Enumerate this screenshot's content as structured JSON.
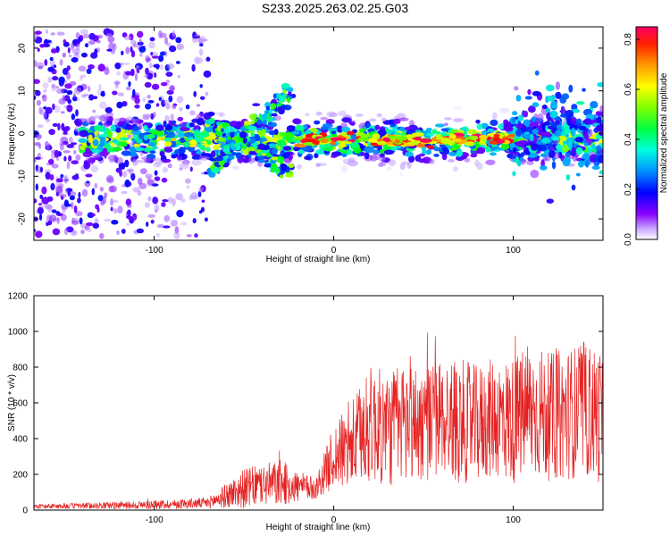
{
  "title": "S233.2025.263.02.25.G03",
  "colors": {
    "snr_line": "#e52222",
    "frame": "#000000"
  },
  "chart_data": [
    {
      "type": "heatmap",
      "xlabel": "Height of straight line (km)",
      "ylabel": "Frequency (Hz)",
      "xlim": [
        -167,
        150
      ],
      "ylim": [
        -25,
        25
      ],
      "xticks": [
        -100,
        0,
        100
      ],
      "xtick_labels": [
        "-100",
        "0",
        "100"
      ],
      "yticks": [
        -20,
        -10,
        0,
        10,
        20
      ],
      "ytick_labels": [
        "-20",
        "-10",
        "0",
        "10",
        "20"
      ],
      "colorbar": {
        "label": "Normalized spectral amplitude",
        "range": [
          0,
          0.85
        ],
        "ticks": [
          0,
          0.2,
          0.4,
          0.6,
          0.8
        ],
        "tick_labels": [
          "0.0",
          "0.2",
          "0.4",
          "0.6",
          "0.8"
        ],
        "colormap": [
          "#ffffff",
          "#b388ff",
          "#7a00ff",
          "#0000ff",
          "#00a0ff",
          "#00ffcc",
          "#00ff00",
          "#ccff00",
          "#ffff00",
          "#ff9900",
          "#ff0000",
          "#ff0066"
        ]
      },
      "features": [
        {
          "name": "noise-floor",
          "x_range": [
            -167,
            -70
          ],
          "freq_spread_hz": 24,
          "amplitude": 0.12
        },
        {
          "name": "main-band",
          "x_range": [
            -140,
            150
          ],
          "center_freq_hz": -1.5,
          "amplitude": 0.45
        },
        {
          "name": "peak-band",
          "x_range": [
            -20,
            100
          ],
          "center_freq_hz": -1.5,
          "amplitude": 0.75
        },
        {
          "name": "branch-upper",
          "x_start": -70,
          "x_end": -25,
          "f_start": 3,
          "f_end": -9,
          "amplitude": 0.35
        },
        {
          "name": "branch-lower",
          "x_start": -70,
          "x_end": -25,
          "f_start": -9,
          "f_end": 10,
          "amplitude": 0.35
        },
        {
          "name": "edge-spread",
          "x_range": [
            100,
            150
          ],
          "freq_spread_hz": 10,
          "amplitude": 0.2
        }
      ]
    },
    {
      "type": "line",
      "xlabel": "Height of straight line (km)",
      "ylabel": "SNR (10 * v/v)",
      "xlim": [
        -167,
        150
      ],
      "ylim": [
        0,
        1200
      ],
      "xticks": [
        -100,
        0,
        100
      ],
      "xtick_labels": [
        "-100",
        "0",
        "100"
      ],
      "yticks": [
        0,
        200,
        400,
        600,
        800,
        1000,
        1200
      ],
      "ytick_labels": [
        "0",
        "200",
        "400",
        "600",
        "800",
        "1000",
        "1200"
      ],
      "envelope_x": [
        -167,
        -100,
        -70,
        -60,
        -50,
        -40,
        -30,
        -20,
        -10,
        0,
        10,
        20,
        30,
        40,
        50,
        60,
        70,
        80,
        90,
        100,
        110,
        120,
        130,
        140,
        150
      ],
      "envelope_mean": [
        20,
        30,
        40,
        80,
        120,
        140,
        150,
        130,
        120,
        300,
        360,
        480,
        450,
        500,
        480,
        520,
        500,
        480,
        520,
        500,
        560,
        520,
        540,
        560,
        520
      ],
      "envelope_amp": [
        12,
        25,
        30,
        70,
        110,
        120,
        130,
        90,
        60,
        180,
        250,
        330,
        330,
        350,
        330,
        330,
        350,
        330,
        340,
        360,
        380,
        360,
        370,
        380,
        380
      ]
    }
  ]
}
